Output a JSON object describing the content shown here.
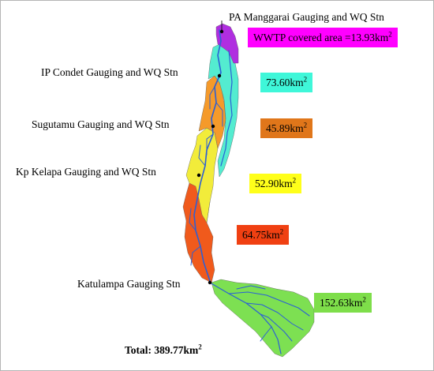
{
  "stations": [
    {
      "label": "PA Manggarai Gauging and WQ Stn"
    },
    {
      "label": "IP Condet Gauging and WQ Stn"
    },
    {
      "label": "Sugutamu Gauging and WQ Stn"
    },
    {
      "label": "Kp Kelapa Gauging and WQ Stn"
    },
    {
      "label": "Katulampa Gauging Stn"
    }
  ],
  "areas": [
    {
      "value": "WWTP covered area =13.93km",
      "sup": "2",
      "color": "#ff00ff"
    },
    {
      "value": "73.60km",
      "sup": "2",
      "color": "#3ff7d9"
    },
    {
      "value": "45.89km",
      "sup": "2",
      "color": "#e0761a"
    },
    {
      "value": "52.90km",
      "sup": "2",
      "color": "#ffff1a"
    },
    {
      "value": "64.75km",
      "sup": "2",
      "color": "#f04012"
    },
    {
      "value": "152.63km",
      "sup": "2",
      "color": "#7ede4a"
    }
  ],
  "total": {
    "value": "Total: 389.77km",
    "sup": "2"
  },
  "zone_colors": {
    "wwtp": "#b02ee0",
    "condet": "#54ecd0",
    "sugutamu": "#f59a2a",
    "kelapa": "#f2ec3a",
    "lower": "#f05a1c",
    "katulampa": "#7de052",
    "river": "#2b5fd6"
  }
}
